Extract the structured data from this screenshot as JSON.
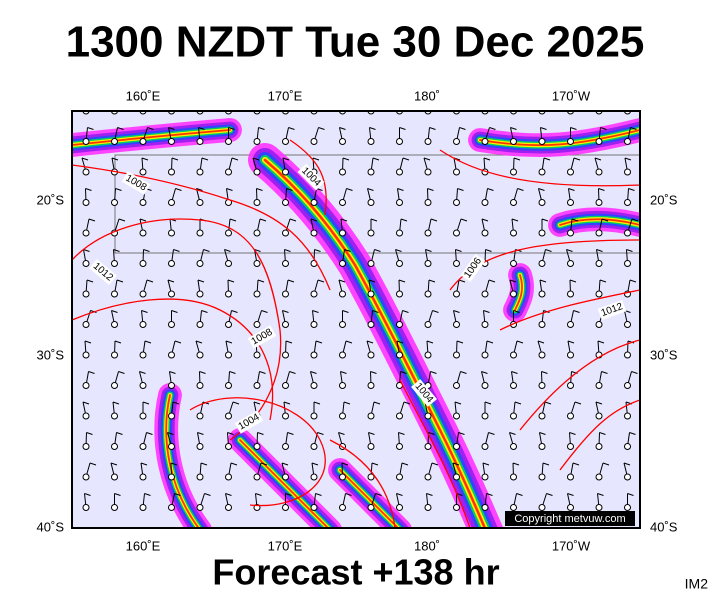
{
  "title": "1300 NZDT Tue 30 Dec 2025",
  "footer": "Forecast +138 hr",
  "image_id": "IM2",
  "copyright": "Copyright metvuw.com",
  "map": {
    "lon_labels": [
      "160˚E",
      "170˚E",
      "180˚",
      "170˚W"
    ],
    "lat_labels": [
      "20˚S",
      "30˚S",
      "40˚S"
    ],
    "isobar_labels": [
      "1008",
      "1004",
      "1012",
      "1008",
      "1004",
      "1006",
      "1012",
      "1004"
    ]
  }
}
